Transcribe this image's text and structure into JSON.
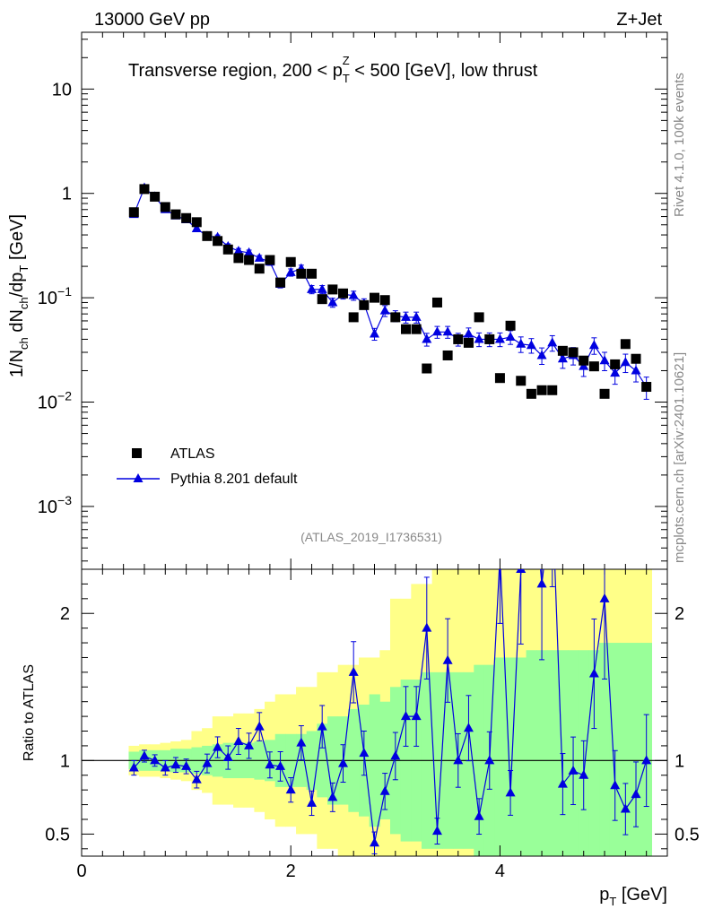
{
  "header": {
    "left": "13000 GeV pp",
    "right": "Z+Jet"
  },
  "side": {
    "rivet": "Rivet 4.1.0,  100k events",
    "mcplots": "mcplots.cern.ch [arXiv:2401.10621]"
  },
  "colors": {
    "data": "#000000",
    "mc": "#0000e0",
    "band_green": "#99ff99",
    "band_yellow": "#ffff88"
  },
  "chart_data": {
    "type": "scatter",
    "title": "Transverse region, 200 < p_T^Z < 500 [GeV], low thrust",
    "title_parts": {
      "pre": "Transverse region, 200 < p",
      "sub": "T",
      "sup": "Z",
      "post": " < 500 [GeV], low thrust"
    },
    "watermark": "(ATLAS_2019_I1736531)",
    "xlabel": "p_T [GeV]",
    "xlabel_parts": {
      "main": "p",
      "sub": "T",
      "unit": " [GeV]"
    },
    "ylabel": "1/N_ch dN_ch/dp_T [GeV]",
    "ylabel_parts": {
      "a": "1/N",
      "a_sub": "ch",
      "b": " dN",
      "b_sub": "ch",
      "c": "/dp",
      "c_sub": "T",
      "d": " [GeV]"
    },
    "ratio_ylabel": "Ratio to ATLAS",
    "xlim": [
      0,
      5.6
    ],
    "ylim": [
      0.00025,
      35
    ],
    "yscale": "log",
    "ratio_ylim": [
      0.35,
      2.3
    ],
    "x_ticks": [
      0,
      2,
      4
    ],
    "x_tick_labels": [
      "0",
      "2",
      "4"
    ],
    "y_ticks": [
      10,
      1,
      0.1,
      0.01,
      0.001
    ],
    "y_tick_labels": [
      {
        "base": "10",
        "exp": ""
      },
      {
        "base": "1",
        "exp": ""
      },
      {
        "base": "10",
        "exp": "−1"
      },
      {
        "base": "10",
        "exp": "−2"
      },
      {
        "base": "10",
        "exp": "−3"
      }
    ],
    "ratio_y_ticks": [
      2,
      1,
      0.5
    ],
    "ratio_y_tick_labels": [
      "2",
      "1",
      "0.5"
    ],
    "legend": [
      {
        "label": "ATLAS",
        "marker": "square"
      },
      {
        "label": "Pythia 8.201 default",
        "marker": "triangle-line"
      }
    ],
    "x": [
      0.5,
      0.6,
      0.7,
      0.8,
      0.9,
      1.0,
      1.1,
      1.2,
      1.3,
      1.4,
      1.5,
      1.6,
      1.7,
      1.8,
      1.9,
      2.0,
      2.1,
      2.2,
      2.3,
      2.4,
      2.5,
      2.6,
      2.7,
      2.8,
      2.9,
      3.0,
      3.1,
      3.2,
      3.3,
      3.4,
      3.5,
      3.6,
      3.7,
      3.8,
      3.9,
      4.0,
      4.1,
      4.2,
      4.3,
      4.4,
      4.5,
      4.6,
      4.7,
      4.8,
      4.9,
      5.0,
      5.1,
      5.2,
      5.3,
      5.4
    ],
    "series": [
      {
        "name": "ATLAS",
        "values": [
          0.66,
          1.1,
          0.93,
          0.74,
          0.63,
          0.58,
          0.53,
          0.39,
          0.35,
          0.29,
          0.24,
          0.23,
          0.19,
          0.23,
          0.14,
          0.22,
          0.17,
          0.17,
          0.097,
          0.12,
          0.11,
          0.065,
          0.085,
          0.1,
          0.095,
          0.065,
          0.05,
          0.05,
          0.021,
          0.09,
          0.028,
          0.04,
          0.037,
          0.065,
          0.04,
          0.017,
          0.054,
          0.016,
          0.012,
          0.013,
          0.013,
          0.031,
          0.03,
          0.025,
          0.022,
          0.012,
          0.023,
          0.036,
          0.026,
          0.014
        ]
      },
      {
        "name": "Pythia 8.201 default",
        "values": [
          0.63,
          1.13,
          0.93,
          0.7,
          0.61,
          0.56,
          0.46,
          0.39,
          0.38,
          0.31,
          0.28,
          0.27,
          0.24,
          0.22,
          0.135,
          0.175,
          0.19,
          0.12,
          0.12,
          0.09,
          0.108,
          0.105,
          0.088,
          0.045,
          0.075,
          0.067,
          0.065,
          0.065,
          0.04,
          0.047,
          0.047,
          0.04,
          0.045,
          0.04,
          0.04,
          0.04,
          0.042,
          0.036,
          0.035,
          0.028,
          0.037,
          0.026,
          0.028,
          0.022,
          0.035,
          0.025,
          0.019,
          0.024,
          0.02,
          0.014
        ]
      }
    ],
    "mc_rel_err": [
      0.04,
      0.03,
      0.03,
      0.04,
      0.04,
      0.04,
      0.05,
      0.05,
      0.05,
      0.06,
      0.06,
      0.06,
      0.06,
      0.07,
      0.08,
      0.08,
      0.08,
      0.09,
      0.09,
      0.1,
      0.1,
      0.1,
      0.11,
      0.13,
      0.12,
      0.12,
      0.12,
      0.12,
      0.14,
      0.13,
      0.13,
      0.14,
      0.14,
      0.15,
      0.15,
      0.15,
      0.15,
      0.17,
      0.16,
      0.18,
      0.17,
      0.19,
      0.19,
      0.2,
      0.18,
      0.2,
      0.22,
      0.2,
      0.22,
      0.24
    ],
    "ratio": [
      0.95,
      1.03,
      1.0,
      0.95,
      0.97,
      0.96,
      0.87,
      0.98,
      1.09,
      1.02,
      1.13,
      1.1,
      1.23,
      0.97,
      0.96,
      0.8,
      1.12,
      0.71,
      1.23,
      0.75,
      0.98,
      1.6,
      1.05,
      0.44,
      0.79,
      1.03,
      1.3,
      1.3,
      1.9,
      0.52,
      1.68,
      1.0,
      1.22,
      0.62,
      1.0,
      2.4,
      0.78,
      2.3,
      3.0,
      2.2,
      2.8,
      0.84,
      0.93,
      0.9,
      1.59,
      2.1,
      0.83,
      0.67,
      0.77,
      1.0
    ],
    "band_green": [
      0.06,
      0.07,
      0.07,
      0.07,
      0.08,
      0.08,
      0.09,
      0.1,
      0.11,
      0.12,
      0.12,
      0.12,
      0.13,
      0.14,
      0.18,
      0.18,
      0.18,
      0.2,
      0.25,
      0.3,
      0.3,
      0.35,
      0.38,
      0.45,
      0.4,
      0.5,
      0.55,
      0.55,
      0.6,
      0.6,
      0.6,
      0.6,
      0.6,
      0.65,
      0.65,
      0.7,
      0.7,
      0.7,
      0.75,
      0.75,
      0.75,
      0.75,
      0.75,
      0.75,
      0.75,
      0.8,
      0.8,
      0.8,
      0.8,
      0.8
    ],
    "band_yellow": [
      0.1,
      0.11,
      0.11,
      0.12,
      0.13,
      0.14,
      0.2,
      0.22,
      0.3,
      0.3,
      0.32,
      0.32,
      0.35,
      0.4,
      0.45,
      0.45,
      0.5,
      0.5,
      0.6,
      0.6,
      0.65,
      0.65,
      0.7,
      0.7,
      0.75,
      1.1,
      1.1,
      1.2,
      1.2,
      1.3,
      1.3,
      1.3,
      1.3,
      1.35,
      1.35,
      1.4,
      1.4,
      1.4,
      1.4,
      1.4,
      1.4,
      1.4,
      1.4,
      1.4,
      1.4,
      1.4,
      1.4,
      1.4,
      1.4,
      1.4
    ]
  }
}
